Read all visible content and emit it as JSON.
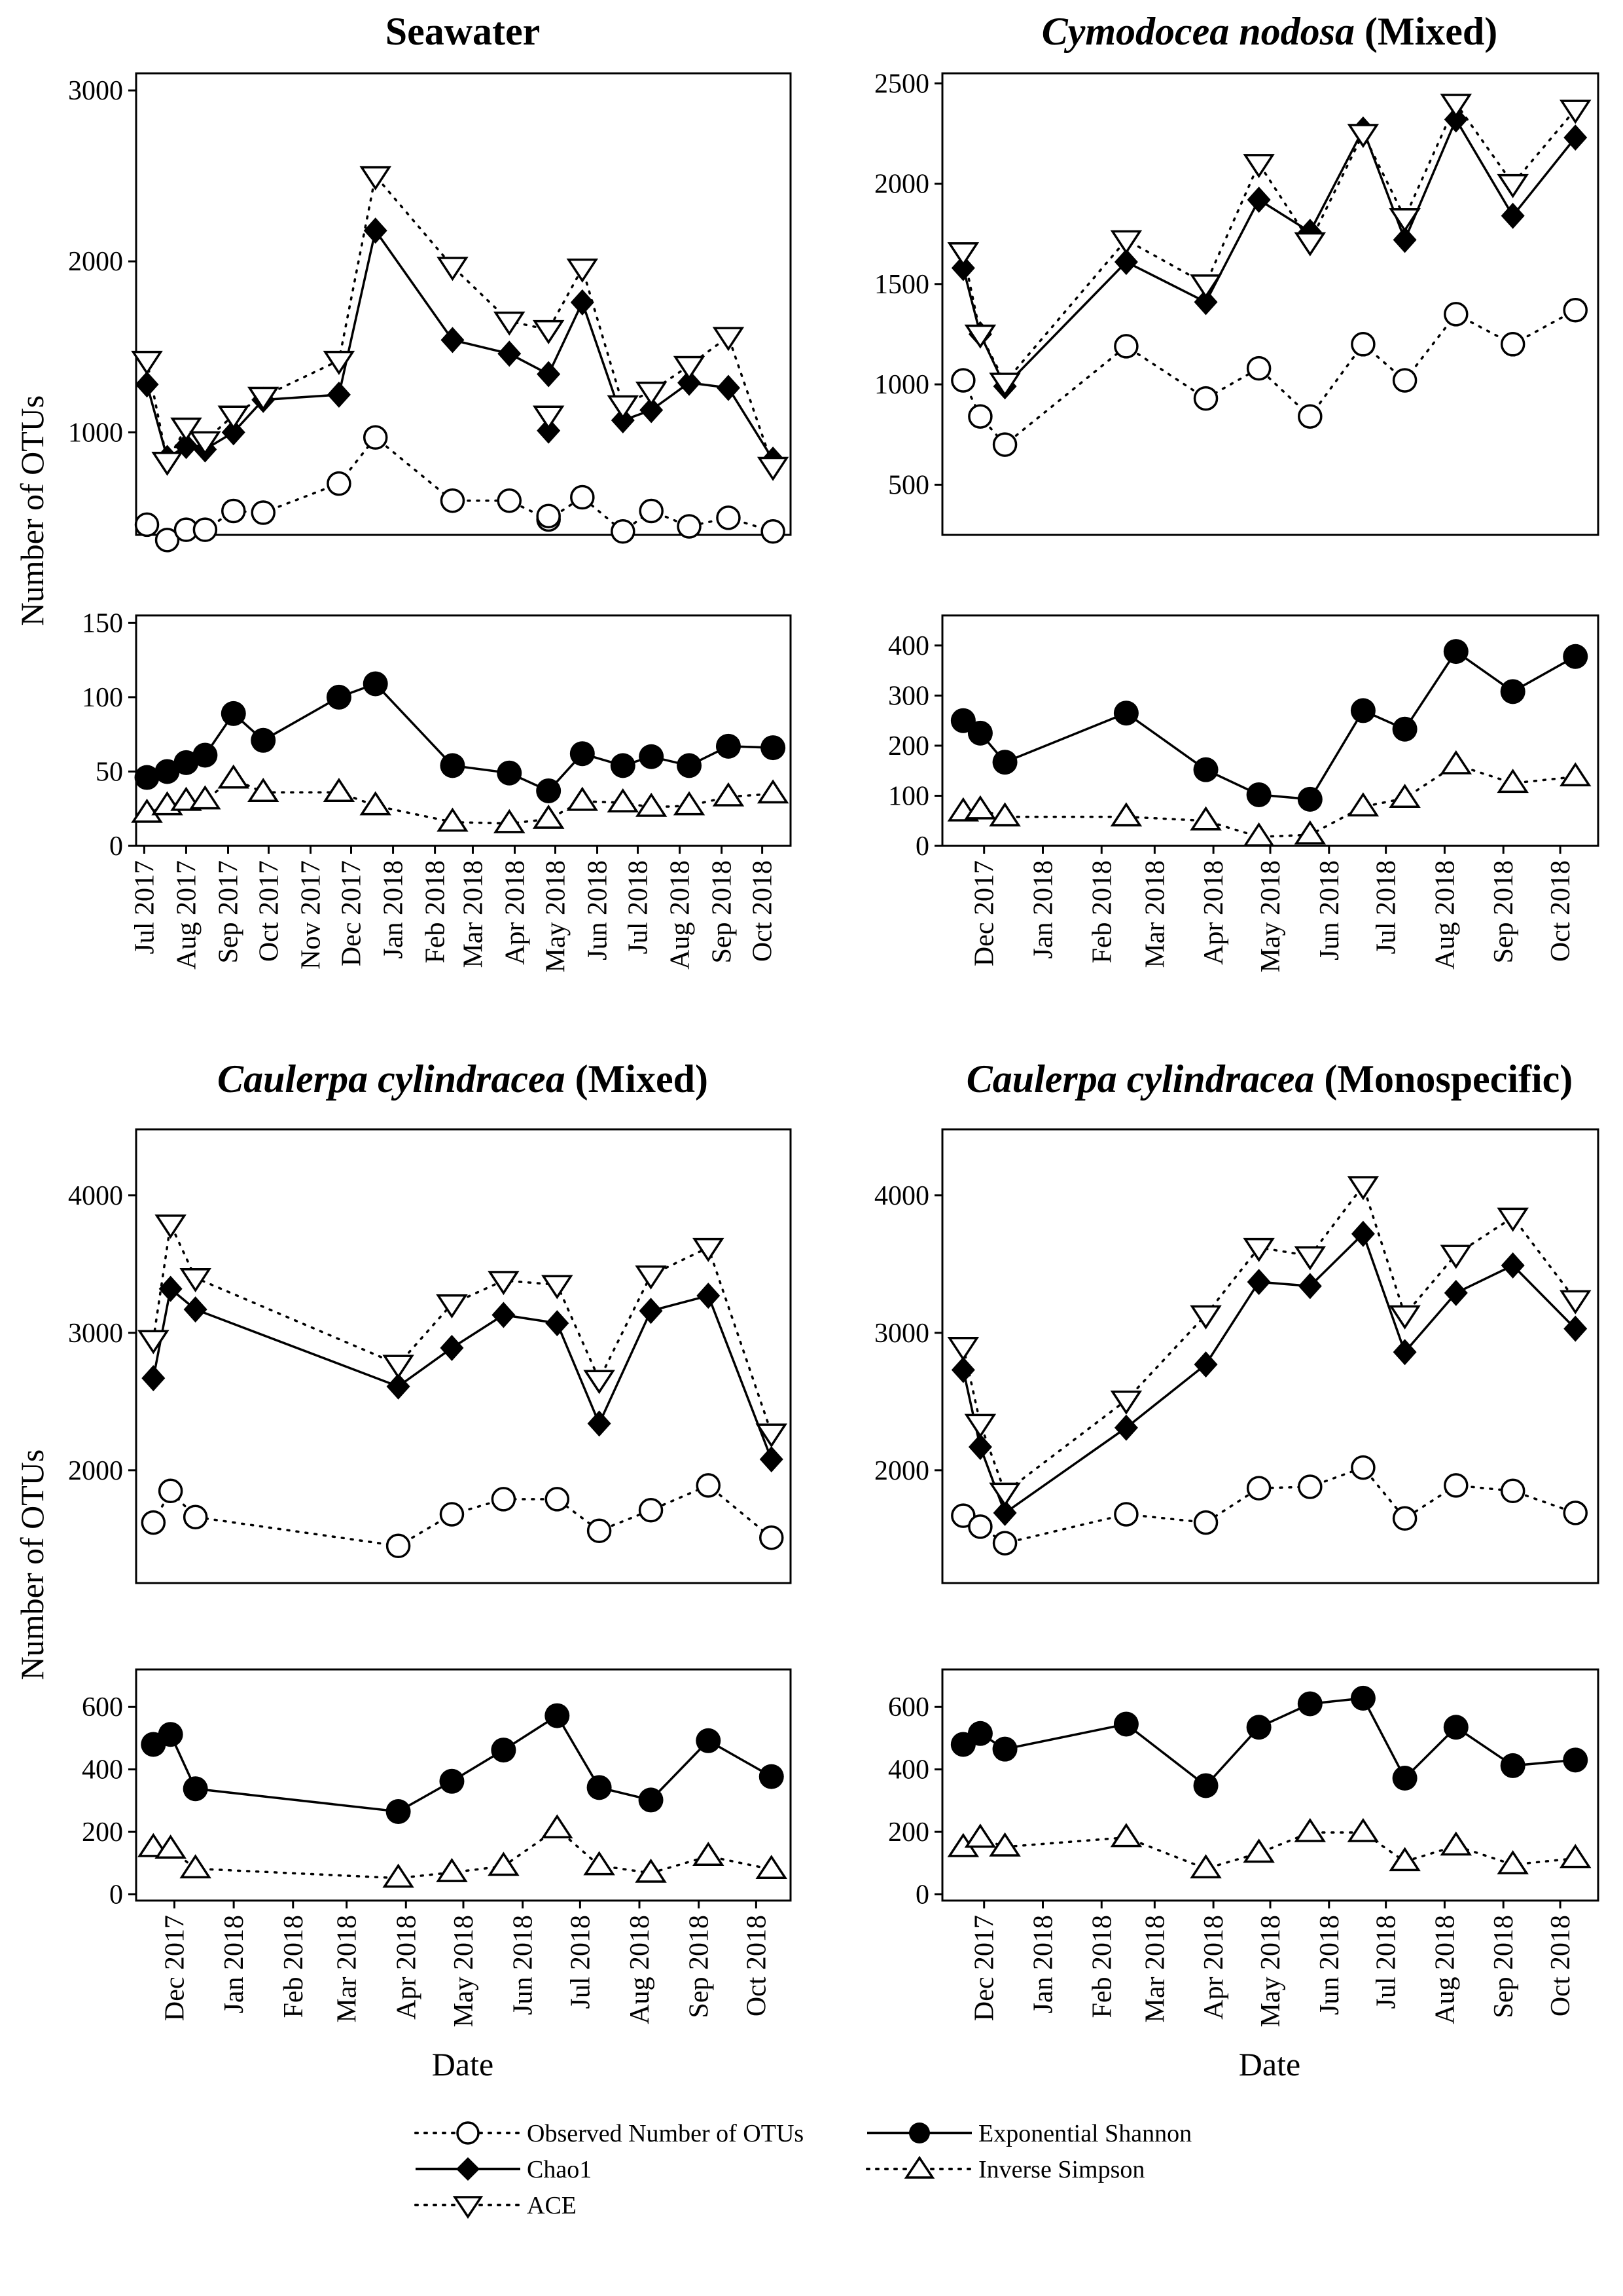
{
  "chart_data": [
    {
      "type": "line",
      "title_italic": "",
      "title_plain": "Seawater",
      "ylabel": "Number of OTUs",
      "xlabel": "",
      "x_tick_labels": [
        "Jul 2017",
        "Aug 2017",
        "Sep 2017",
        "Oct 2017",
        "Nov 2017",
        "Dec 2017",
        "Jan 2018",
        "Feb 2018",
        "Mar 2018",
        "Apr 2018",
        "May 2018",
        "Jun 2018",
        "Jul 2018",
        "Aug 2018",
        "Sep 2018",
        "Oct 2018"
      ],
      "dates": [
        "2017-07-03",
        "2017-07-18",
        "2017-08-01",
        "2017-08-15",
        "2017-09-05",
        "2017-09-27",
        "2017-11-22",
        "2017-12-19",
        "2018-02-14",
        "2018-03-28",
        "2018-04-26",
        "2018-05-21",
        "2018-06-20",
        "2018-07-11",
        "2018-08-08",
        "2018-09-06",
        "2018-10-09"
      ],
      "upper": {
        "ylim": [
          400,
          3100
        ],
        "yticks": [
          1000,
          2000,
          3000
        ],
        "series": [
          {
            "name": "Observed Number of OTUs",
            "values": [
              460,
              370,
              430,
              430,
              540,
              530,
              700,
              970,
              600,
              600,
              490,
              620,
              420,
              540,
              450,
              500,
              420
            ]
          },
          {
            "name": "Chao1",
            "values": [
              1280,
              850,
              920,
              900,
              1000,
              1190,
              1220,
              2180,
              1540,
              1460,
              1340,
              1760,
              1070,
              1130,
              1290,
              1260,
              840
            ]
          },
          {
            "name": "ACE",
            "values": [
              1420,
              830,
              1030,
              950,
              1100,
              1210,
              1420,
              2500,
              1970,
              1650,
              1600,
              1960,
              1160,
              1240,
              1390,
              1560,
              800
            ]
          }
        ],
        "extra_observed": [
          [
            "2018-04-26",
            510
          ]
        ],
        "extra_chao1": [
          [
            "2018-04-26",
            1010
          ]
        ],
        "extra_ace": [
          [
            "2018-04-26",
            1100
          ]
        ]
      },
      "lower": {
        "ylim": [
          0,
          155
        ],
        "yticks": [
          0,
          50,
          100,
          150
        ],
        "series": [
          {
            "name": "Exponential Shannon",
            "values": [
              46,
              50,
              56,
              61,
              89,
              71,
              100,
              109,
              54,
              49,
              37,
              62,
              54,
              60,
              54,
              67,
              66
            ]
          },
          {
            "name": "Inverse Simpson",
            "values": [
              22,
              27,
              30,
              31,
              45,
              36,
              36,
              27,
              16,
              15,
              18,
              30,
              29,
              26,
              27,
              33,
              35
            ]
          }
        ]
      }
    },
    {
      "type": "line",
      "title_italic": "Cymodocea nodosa",
      "title_plain": " (Mixed)",
      "ylabel": "",
      "xlabel": "",
      "x_tick_labels": [
        "Dec 2017",
        "Jan 2018",
        "Feb 2018",
        "Mar 2018",
        "Apr 2018",
        "May 2018",
        "Jun 2018",
        "Jul 2018",
        "Aug 2018",
        "Sep 2018",
        "Oct 2018"
      ],
      "dates": [
        "2017-11-20",
        "2017-11-29",
        "2017-12-12",
        "2018-02-14",
        "2018-03-28",
        "2018-04-25",
        "2018-05-22",
        "2018-06-19",
        "2018-07-11",
        "2018-08-07",
        "2018-09-06",
        "2018-10-09"
      ],
      "upper": {
        "ylim": [
          250,
          2550
        ],
        "yticks": [
          500,
          1000,
          1500,
          2000,
          2500
        ],
        "series": [
          {
            "name": "Observed Number of OTUs",
            "values": [
              1020,
              840,
              700,
              1190,
              930,
              1080,
              840,
              1200,
              1020,
              1350,
              1200,
              1370
            ]
          },
          {
            "name": "Chao1",
            "values": [
              1580,
              1250,
              990,
              1610,
              1410,
              1920,
              1760,
              2270,
              1720,
              2320,
              1840,
              2230
            ]
          },
          {
            "name": "ACE",
            "values": [
              1660,
              1250,
              1010,
              1720,
              1500,
              2100,
              1710,
              2250,
              1830,
              2400,
              2000,
              2370
            ]
          }
        ]
      },
      "lower": {
        "ylim": [
          0,
          460
        ],
        "yticks": [
          0,
          100,
          200,
          300,
          400
        ],
        "series": [
          {
            "name": "Exponential Shannon",
            "values": [
              250,
              225,
              167,
              265,
              152,
              102,
              93,
              270,
              233,
              388,
              308,
              378
            ]
          },
          {
            "name": "Inverse Simpson",
            "values": [
              68,
              72,
              58,
              58,
              50,
              18,
              22,
              78,
              95,
              162,
              125,
              138
            ]
          }
        ]
      }
    },
    {
      "type": "line",
      "title_italic": "Caulerpa cylindracea",
      "title_plain": " (Mixed)",
      "ylabel": "Number of OTUs",
      "xlabel": "Date",
      "x_tick_labels": [
        "Dec 2017",
        "Jan 2018",
        "Feb 2018",
        "Mar 2018",
        "Apr 2018",
        "May 2018",
        "Jun 2018",
        "Jul 2018",
        "Aug 2018",
        "Sep 2018",
        "Oct 2018"
      ],
      "dates": [
        "2017-11-20",
        "2017-11-29",
        "2017-12-12",
        "2018-03-28",
        "2018-04-25",
        "2018-05-22",
        "2018-06-19",
        "2018-07-11",
        "2018-08-07",
        "2018-09-06",
        "2018-10-09"
      ],
      "upper": {
        "ylim": [
          1180,
          4480
        ],
        "yticks": [
          2000,
          3000,
          4000
        ],
        "series": [
          {
            "name": "Observed Number of OTUs",
            "values": [
              1620,
              1850,
              1660,
              1450,
              1680,
              1790,
              1790,
              1560,
              1710,
              1890,
              1510
            ]
          },
          {
            "name": "Chao1",
            "values": [
              2670,
              3320,
              3170,
              2610,
              2890,
              3130,
              3070,
              2340,
              3160,
              3270,
              2080
            ]
          },
          {
            "name": "ACE",
            "values": [
              2950,
              3790,
              3400,
              2770,
              3210,
              3380,
              3350,
              2660,
              3420,
              3620,
              2270
            ]
          }
        ]
      },
      "lower": {
        "ylim": [
          -20,
          720
        ],
        "yticks": [
          0,
          200,
          400,
          600
        ],
        "series": [
          {
            "name": "Exponential Shannon",
            "values": [
              480,
              512,
              338,
              265,
              362,
              462,
              572,
              342,
              302,
              492,
              377
            ]
          },
          {
            "name": "Inverse Simpson",
            "values": [
              150,
              145,
              82,
              52,
              70,
              90,
              210,
              92,
              68,
              122,
              80
            ]
          }
        ]
      }
    },
    {
      "type": "line",
      "title_italic": "Caulerpa cylindracea",
      "title_plain": " (Monospecific)",
      "ylabel": "",
      "xlabel": "Date",
      "x_tick_labels": [
        "Dec 2017",
        "Jan 2018",
        "Feb 2018",
        "Mar 2018",
        "Apr 2018",
        "May 2018",
        "Jun 2018",
        "Jul 2018",
        "Aug 2018",
        "Sep 2018",
        "Oct 2018"
      ],
      "dates": [
        "2017-11-20",
        "2017-11-29",
        "2017-12-12",
        "2018-02-14",
        "2018-03-28",
        "2018-04-25",
        "2018-05-22",
        "2018-06-19",
        "2018-07-11",
        "2018-08-07",
        "2018-09-06",
        "2018-10-09"
      ],
      "upper": {
        "ylim": [
          1180,
          4480
        ],
        "yticks": [
          2000,
          3000,
          4000
        ],
        "series": [
          {
            "name": "Observed Number of OTUs",
            "values": [
              1670,
              1590,
              1470,
              1680,
              1620,
              1870,
              1880,
              2020,
              1650,
              1890,
              1850,
              1690
            ]
          },
          {
            "name": "Chao1",
            "values": [
              2730,
              2170,
              1690,
              2310,
              2770,
              3370,
              3340,
              3720,
              2860,
              3290,
              3490,
              3030
            ]
          },
          {
            "name": "ACE",
            "values": [
              2900,
              2340,
              1840,
              2510,
              3130,
              3620,
              3560,
              4070,
              3130,
              3570,
              3840,
              3240
            ]
          }
        ]
      },
      "lower": {
        "ylim": [
          -20,
          720
        ],
        "yticks": [
          0,
          200,
          400,
          600
        ],
        "series": [
          {
            "name": "Exponential Shannon",
            "values": [
              480,
              515,
              465,
              545,
              348,
              535,
              610,
              628,
              372,
              535,
              412,
              430
            ]
          },
          {
            "name": "Inverse Simpson",
            "values": [
              150,
              180,
              152,
              182,
              82,
              132,
              198,
              198,
              105,
              155,
              95,
              115
            ]
          }
        ]
      }
    }
  ],
  "legend": {
    "items": [
      {
        "label": "Observed Number of OTUs",
        "marker": "open-circle",
        "line": "dotted"
      },
      {
        "label": "Chao1",
        "marker": "filled-diamond",
        "line": "solid"
      },
      {
        "label": "ACE",
        "marker": "open-down-triangle",
        "line": "dotted"
      },
      {
        "label": "Exponential Shannon",
        "marker": "filled-circle",
        "line": "solid"
      },
      {
        "label": "Inverse Simpson",
        "marker": "open-up-triangle",
        "line": "dotted"
      }
    ]
  },
  "colors": {
    "ink": "#000000",
    "background": "#ffffff"
  }
}
